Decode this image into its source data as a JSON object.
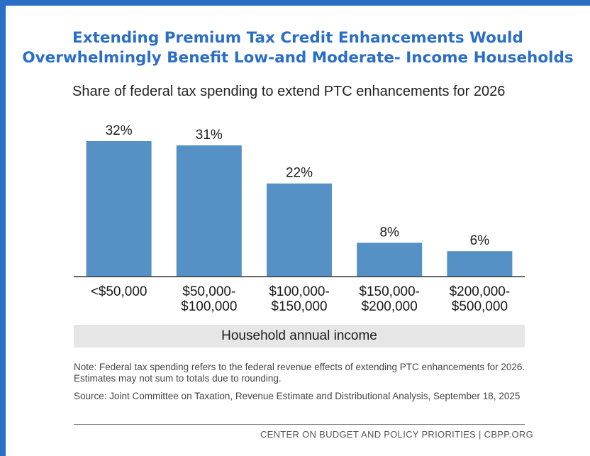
{
  "chart_data": {
    "type": "bar",
    "title": "Extending Premium Tax Credit Enhancements Would Overwhelmingly Benefit Low-and Moderate- Income Households",
    "title_lines": [
      "Extending Premium Tax Credit Enhancements Would",
      "Overwhelmingly Benefit Low-and Moderate- Income Households"
    ],
    "subtitle": "Share of federal tax spending to extend PTC enhancements for 2026",
    "categories": [
      "<$50,000",
      "$50,000-\n$100,000",
      "$100,000-\n$150,000",
      "$150,000-\n$200,000",
      "$200,000-\n$500,000"
    ],
    "values": [
      32,
      31,
      22,
      8,
      6
    ],
    "value_labels": [
      "32%",
      "31%",
      "22%",
      "8%",
      "6%"
    ],
    "xlabel": "Household annual income",
    "ylabel": "",
    "ylim": [
      0,
      32
    ],
    "grid": false,
    "bar_color": "#5591c4",
    "axis_color": "#333333"
  },
  "note": "Note: Federal tax spending refers to the federal revenue effects of extending PTC enhancements for 2026. Estimates may not sum to totals due to rounding.",
  "source": "Source: Joint Committee on Taxation, Revenue Estimate and Distributional Analysis, September 18, 2025",
  "footer": "CENTER ON BUDGET AND POLICY PRIORITIES | CBPP.ORG",
  "colors": {
    "accent": "#2a6ec6"
  }
}
